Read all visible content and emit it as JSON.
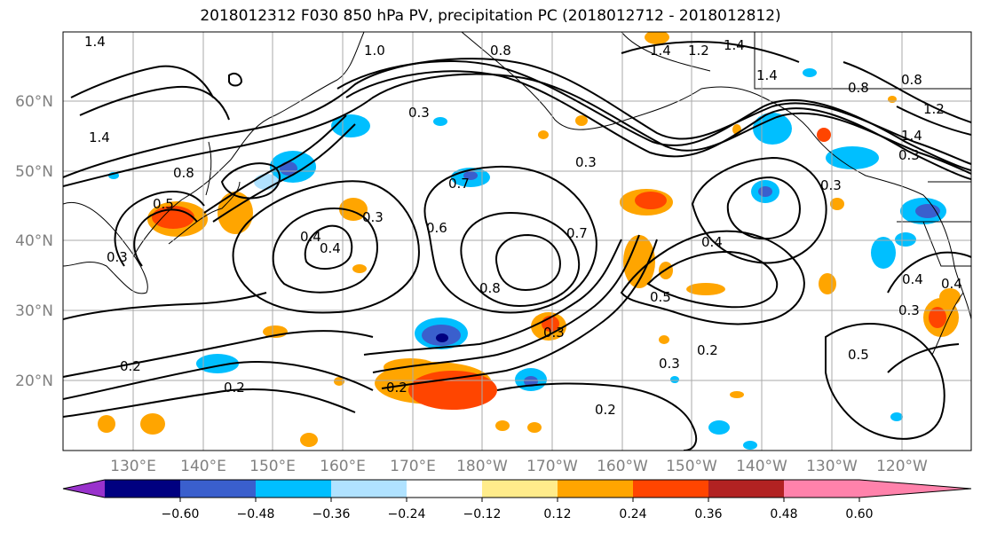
{
  "title": "2018012312 F030 850 hPa PV, precipitation PC (2018012712 - 2018012812)",
  "lat_labels": [
    "60°N",
    "50°N",
    "40°N",
    "30°N",
    "20°N"
  ],
  "lon_labels": [
    "130°E",
    "140°E",
    "150°E",
    "160°E",
    "170°E",
    "180°W",
    "170°W",
    "160°W",
    "150°W",
    "140°W",
    "130°W",
    "120°W"
  ],
  "colorbar": {
    "ticks": [
      "−0.60",
      "−0.48",
      "−0.36",
      "−0.24",
      "−0.12",
      "0.12",
      "0.24",
      "0.36",
      "0.48",
      "0.60"
    ],
    "colors": [
      "#9932cc",
      "#000080",
      "#3a5fcd",
      "#00bfff",
      "#b0e2ff",
      "#ffffff",
      "#ffec8b",
      "#ffa500",
      "#ff4500",
      "#b22222",
      "#ff82ab"
    ]
  },
  "contour_labels": [
    "1.4",
    "1.0",
    "0.8",
    "1.2",
    "1.4",
    "1.4",
    "0.8",
    "1.4",
    "1.2",
    "1.4",
    "0.3",
    "0.3",
    "1.4",
    "0.8",
    "0.7",
    "0.3",
    "0.3",
    "0.3",
    "0.6",
    "0.8",
    "0.7",
    "0.4",
    "0.5",
    "0.4",
    "0.3",
    "0.2",
    "0.3",
    "0.2",
    "0.2",
    "0.2",
    "0.5",
    "0.3",
    "0.4",
    "0.2",
    "0.5",
    "0.3",
    "0.8",
    "0.4",
    "0.4"
  ]
}
